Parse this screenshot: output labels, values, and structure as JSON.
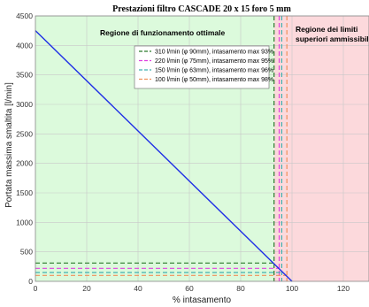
{
  "chart_data": {
    "type": "line",
    "title": "Prestazioni filtro CASCADE 20 x 15 foro 5 mm",
    "xlabel": "% intasamento",
    "ylabel": "Portata massima smaltita [l/min]",
    "xlim": [
      0,
      130
    ],
    "ylim": [
      0,
      4500
    ],
    "x_ticks": [
      0,
      20,
      40,
      60,
      80,
      100,
      120
    ],
    "y_ticks": [
      0,
      500,
      1000,
      1500,
      2000,
      2500,
      3000,
      3500,
      4000,
      4500
    ],
    "grid": true,
    "legend_placement": "top-center",
    "regions": [
      {
        "label": "Regione di funzionamento ottimale",
        "x_range": [
          0,
          93
        ],
        "color": "#dcfadc"
      },
      {
        "label_lines": [
          "Regione dei limiti",
          "superiori ammissibili"
        ],
        "x_range": [
          93,
          130
        ],
        "color": "#fcd9dc"
      }
    ],
    "curve": {
      "color": "#1f2fe6",
      "points": [
        [
          0,
          4250
        ],
        [
          100,
          0
        ]
      ]
    },
    "series": [
      {
        "name": "310 l/min (φ 90mm), intasamento max 93%",
        "flow": 310,
        "max_clog": 93,
        "color": "#2a7a2a"
      },
      {
        "name": "220 l/min (φ 75mm), intasamento max 95%",
        "flow": 220,
        "max_clog": 95,
        "color": "#e040e0"
      },
      {
        "name": "150 l/min (φ 63mm), intasamento max 96%",
        "flow": 150,
        "max_clog": 96,
        "color": "#3fb0b0"
      },
      {
        "name": "100 l/min (φ 50mm), intasamento max 98%",
        "flow": 100,
        "max_clog": 98,
        "color": "#f0905a"
      }
    ]
  }
}
